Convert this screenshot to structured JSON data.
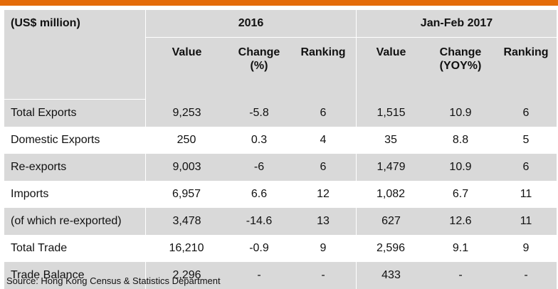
{
  "header": {
    "unit": "(US$ million)",
    "period1": "2016",
    "period2": "Jan-Feb 2017",
    "columns": [
      "Value",
      "Change\n(%)",
      "Ranking",
      "Value",
      "Change\n(YOY%)",
      "Ranking"
    ],
    "col_value": "Value",
    "col_change_pct": "Change (%)",
    "col_change_yoy": "Change (YOY%)",
    "col_ranking": "Ranking"
  },
  "rows": [
    {
      "label": "Total Exports",
      "v2016": "9,253",
      "c2016": "-5.8",
      "r2016": "6",
      "v2017": "1,515",
      "c2017": "10.9",
      "r2017": "6"
    },
    {
      "label": "Domestic Exports",
      "v2016": "250",
      "c2016": "0.3",
      "r2016": "4",
      "v2017": "35",
      "c2017": "8.8",
      "r2017": "5"
    },
    {
      "label": "Re-exports",
      "v2016": "9,003",
      "c2016": "-6",
      "r2016": "6",
      "v2017": "1,479",
      "c2017": "10.9",
      "r2017": "6"
    },
    {
      "label": "Imports",
      "v2016": "6,957",
      "c2016": "6.6",
      "r2016": "12",
      "v2017": "1,082",
      "c2017": "6.7",
      "r2017": "11"
    },
    {
      "label": "(of which re-exported)",
      "v2016": "3,478",
      "c2016": "-14.6",
      "r2016": "13",
      "v2017": "627",
      "c2017": "12.6",
      "r2017": "11"
    },
    {
      "label": "Total Trade",
      "v2016": "16,210",
      "c2016": "-0.9",
      "r2016": "9",
      "v2017": "2,596",
      "c2017": "9.1",
      "r2017": "9"
    },
    {
      "label": "Trade Balance",
      "v2016": "2,296",
      "c2016": "-",
      "r2016": "-",
      "v2017": "433",
      "c2017": "-",
      "r2017": "-"
    }
  ],
  "source": "Source: Hong Kong Census & Statistics Department",
  "colors": {
    "accent_bar": "#e46c0a",
    "band": "#d9d9d9"
  }
}
